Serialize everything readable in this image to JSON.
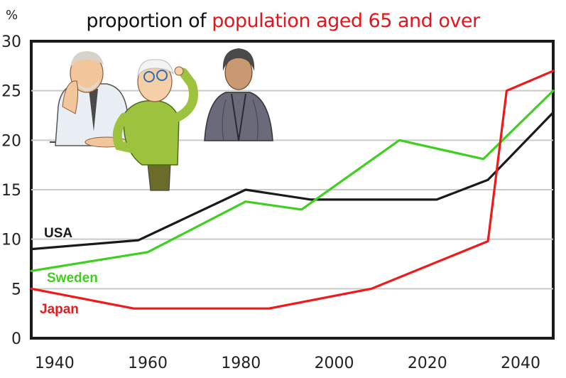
{
  "title": {
    "part1": "proportion of",
    "part2": "population aged 65 and over"
  },
  "colors": {
    "usa": "#1a1a1a",
    "sweden": "#3fcf1f",
    "japan": "#f01818",
    "grid": "#c9c9c9",
    "title_accent": "#e8141b"
  },
  "chart_data": {
    "type": "line",
    "title": "proportion of population aged 65 and over",
    "xlabel": "",
    "ylabel": "%",
    "xlim": [
      1935,
      2047
    ],
    "ylim": [
      0,
      30
    ],
    "x_ticks": [
      1940,
      1960,
      1980,
      2000,
      2020,
      2040
    ],
    "y_ticks": [
      0,
      5,
      10,
      15,
      20,
      25,
      30
    ],
    "grid": true,
    "series": [
      {
        "name": "USA",
        "color": "#1a1a1a",
        "points": [
          [
            1935,
            9.0
          ],
          [
            1958,
            9.9
          ],
          [
            1981,
            15.0
          ],
          [
            1995,
            14.0
          ],
          [
            2022,
            14.0
          ],
          [
            2033,
            16.0
          ],
          [
            2047,
            22.8
          ]
        ]
      },
      {
        "name": "Sweden",
        "color": "#3fcf1f",
        "points": [
          [
            1935,
            6.8
          ],
          [
            1960,
            8.7
          ],
          [
            1981,
            13.8
          ],
          [
            1993,
            13.0
          ],
          [
            2014,
            20.0
          ],
          [
            2032,
            18.1
          ],
          [
            2047,
            25.0
          ]
        ]
      },
      {
        "name": "Japan",
        "color": "#f01818",
        "points": [
          [
            1935,
            5.0
          ],
          [
            1957,
            3.0
          ],
          [
            1986,
            3.0
          ],
          [
            2008,
            5.0
          ],
          [
            2033,
            9.8
          ],
          [
            2037,
            25.0
          ],
          [
            2047,
            27.0
          ]
        ]
      }
    ]
  },
  "illustrations": [
    {
      "icon": "senior-man-thinking-illustration"
    },
    {
      "icon": "senior-man-glasses-illustration"
    },
    {
      "icon": "senior-woman-kimono-illustration"
    }
  ]
}
